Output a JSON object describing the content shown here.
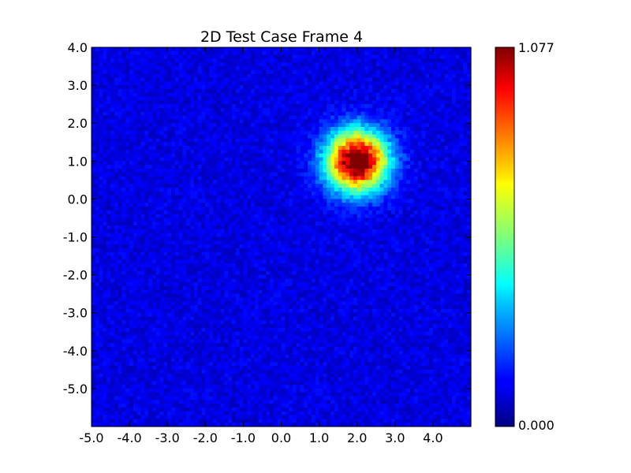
{
  "chart_data": {
    "type": "heatmap",
    "title": "2D Test Case Frame 4",
    "xlabel": "",
    "ylabel": "",
    "xlim": [
      -5.0,
      5.0
    ],
    "ylim": [
      -6.0,
      4.0
    ],
    "x_ticks": [
      -5.0,
      -4.0,
      -3.0,
      -2.0,
      -1.0,
      0.0,
      1.0,
      2.0,
      3.0,
      4.0
    ],
    "y_ticks": [
      4.0,
      3.0,
      2.0,
      1.0,
      0.0,
      -1.0,
      -2.0,
      -3.0,
      -4.0,
      -5.0
    ],
    "x_tick_labels": [
      "-5.0",
      "-4.0",
      "-3.0",
      "-2.0",
      "-1.0",
      "0.0",
      "1.0",
      "2.0",
      "3.0",
      "4.0"
    ],
    "y_tick_labels": [
      "4.0",
      "3.0",
      "2.0",
      "1.0",
      "0.0",
      "-1.0",
      "-2.0",
      "-3.0",
      "-4.0",
      "-5.0"
    ],
    "colormap": "jet",
    "colorbar": {
      "min": 0.0,
      "max": 1.077,
      "min_label": "0.000",
      "max_label": "1.077"
    },
    "peak": {
      "x": 2.0,
      "y": 1.0,
      "value": 1.077,
      "sigma": 0.55
    },
    "background_noise": 0.15,
    "grid": false
  }
}
